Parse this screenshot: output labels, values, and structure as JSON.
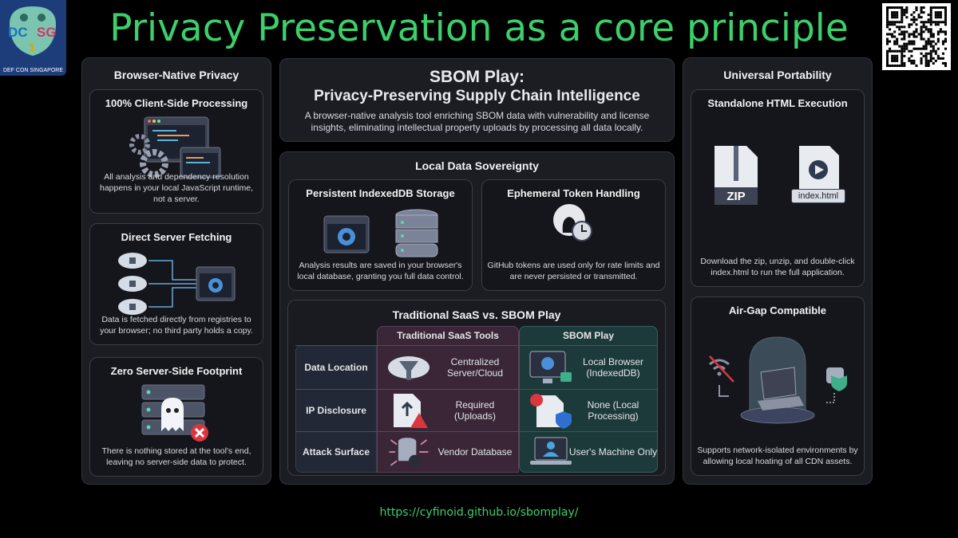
{
  "title": "Privacy Preservation as a core principle",
  "logo": {
    "text": "DEF CON SINGAPORE",
    "mark": "DC SG 1"
  },
  "url": "https://cyfinoid.github.io/sbomplay/",
  "left": {
    "heading": "Browser-Native Privacy",
    "cards": [
      {
        "title": "100% Client-Side Processing",
        "desc": "All analysis and dependency resolution happens in your local JavaScript runtime, not a server.",
        "icon": "gears-code-window-icon"
      },
      {
        "title": "Direct Server Fetching",
        "desc": "Data is fetched directly from registries to your browser; no third party holds a copy.",
        "icon": "cloud-lock-to-browser-icon"
      },
      {
        "title": "Zero Server-Side Footprint",
        "desc": "There is nothing stored at the tool's end, leaving no server-side data to protect.",
        "icon": "ghost-server-icon"
      }
    ]
  },
  "header": {
    "title": "SBOM Play:",
    "subtitle": "Privacy-Preserving Supply Chain Intelligence",
    "desc": "A browser-native analysis tool enriching SBOM data with vulnerability and license insights, eliminating intellectual property uploads by processing all data locally."
  },
  "sovereignty": {
    "heading": "Local Data Sovereignty",
    "cards": [
      {
        "title": "Persistent IndexedDB Storage",
        "desc": "Analysis results are saved in your browser's local database, granting you full data control."
      },
      {
        "title": "Ephemeral Token Handling",
        "desc": "GitHub tokens are used only for rate limits and are never persisted or transmitted."
      }
    ]
  },
  "comparison": {
    "heading": "Traditional SaaS vs. SBOM Play",
    "columns": [
      "Traditional SaaS Tools",
      "SBOM Play"
    ],
    "rows": [
      {
        "label": "Data Location",
        "saas": "Centralized Server/Cloud",
        "sbom": "Local Browser (IndexedDB)"
      },
      {
        "label": "IP Disclosure",
        "saas": "Required (Uploads)",
        "sbom": "None (Local Processing)"
      },
      {
        "label": "Attack Surface",
        "saas": "Vendor Database",
        "sbom": "User's Machine Only"
      }
    ],
    "colors": {
      "saas": "#3a2636",
      "sbom": "#1d3a3a"
    }
  },
  "right": {
    "heading": "Universal Portability",
    "cards": [
      {
        "title": "Standalone HTML Execution",
        "desc": "Download the zip, unzip, and double-click index.html to run the full application.",
        "zip_label": "ZIP",
        "file_label": "index.html"
      },
      {
        "title": "Air-Gap Compatible",
        "desc": "Supports network-isolated environments by allowing local hoating of all CDN assets."
      }
    ]
  },
  "colors": {
    "accent": "#3ccf6b",
    "panel": "#1b1d23",
    "card": "#15161b"
  }
}
